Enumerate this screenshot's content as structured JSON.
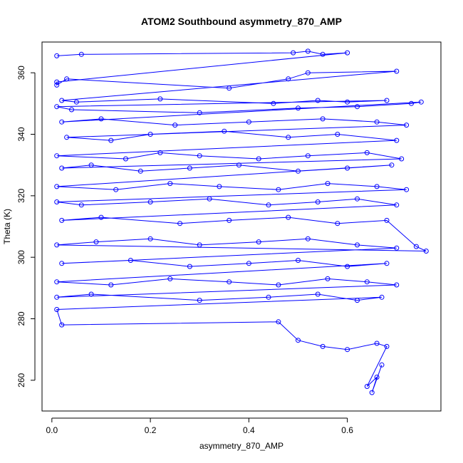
{
  "chart_data": {
    "type": "scatter",
    "title": "ATOM2 Southbound asymmetry_870_AMP",
    "xlabel": "asymmetry_870_AMP",
    "ylabel": "Theta (K)",
    "xlim": [
      -0.02,
      0.79
    ],
    "ylim": [
      250,
      370
    ],
    "xticks": [
      0.0,
      0.2,
      0.4,
      0.6
    ],
    "xtick_labels": [
      "0.0",
      "0.2",
      "0.4",
      "0.6"
    ],
    "yticks": [
      260,
      280,
      300,
      320,
      340,
      360
    ],
    "yticks_labels": [
      "260",
      "280",
      "300",
      "320",
      "340",
      "360"
    ],
    "grid": false,
    "marker": "open-circle",
    "connect_points": true,
    "color": "#0000ff",
    "series": [
      {
        "x": [
          0.01,
          0.06,
          0.49,
          0.52,
          0.55,
          0.6,
          0.01,
          0.01,
          0.03,
          0.36,
          0.48,
          0.52,
          0.7,
          0.02,
          0.05,
          0.22,
          0.45,
          0.54,
          0.6,
          0.68,
          0.01,
          0.04,
          0.3,
          0.5,
          0.62,
          0.73,
          0.75,
          0.02,
          0.1,
          0.25,
          0.4,
          0.55,
          0.66,
          0.72,
          0.03,
          0.12,
          0.2,
          0.35,
          0.48,
          0.58,
          0.7,
          0.01,
          0.15,
          0.22,
          0.3,
          0.42,
          0.52,
          0.64,
          0.71,
          0.02,
          0.08,
          0.18,
          0.28,
          0.38,
          0.5,
          0.6,
          0.69,
          0.01,
          0.13,
          0.24,
          0.34,
          0.46,
          0.56,
          0.66,
          0.72,
          0.01,
          0.06,
          0.2,
          0.32,
          0.44,
          0.54,
          0.62,
          0.7,
          0.02,
          0.1,
          0.26,
          0.36,
          0.48,
          0.58,
          0.68,
          0.74,
          0.76,
          0.01,
          0.09,
          0.2,
          0.3,
          0.42,
          0.52,
          0.62,
          0.7,
          0.02,
          0.16,
          0.28,
          0.4,
          0.5,
          0.6,
          0.68,
          0.01,
          0.12,
          0.24,
          0.36,
          0.46,
          0.56,
          0.64,
          0.7,
          0.01,
          0.08,
          0.3,
          0.44,
          0.54,
          0.62,
          0.67,
          0.01,
          0.02,
          0.46,
          0.5,
          0.55,
          0.6,
          0.66,
          0.68,
          0.64,
          0.66,
          0.65,
          0.67
        ],
        "y": [
          365.5,
          366,
          366.5,
          367,
          366,
          366.5,
          357,
          356,
          358,
          355,
          358,
          360,
          360.5,
          351,
          350.5,
          351.5,
          350,
          351,
          350.5,
          351,
          349,
          348,
          347,
          348.5,
          349,
          350,
          350.5,
          344,
          345,
          343,
          344,
          345,
          344,
          343,
          339,
          338,
          340,
          341,
          339,
          340,
          338,
          333,
          332,
          334,
          333,
          332,
          333,
          334,
          332,
          329,
          330,
          328,
          329,
          330,
          328,
          329,
          330,
          323,
          322,
          324,
          323,
          322,
          324,
          323,
          322,
          318,
          317,
          318,
          319,
          317,
          318,
          319,
          317,
          312,
          313,
          311,
          312,
          313,
          311,
          312,
          303.5,
          302,
          304,
          305,
          306,
          304,
          305,
          306,
          304,
          303,
          298,
          299,
          297,
          298,
          299,
          297,
          298,
          292,
          291,
          293,
          292,
          291,
          293,
          292,
          291,
          287,
          288,
          286,
          287,
          288,
          286,
          287,
          283,
          278,
          279,
          273,
          271,
          270,
          272,
          271,
          258,
          261,
          256,
          265
        ]
      }
    ]
  }
}
